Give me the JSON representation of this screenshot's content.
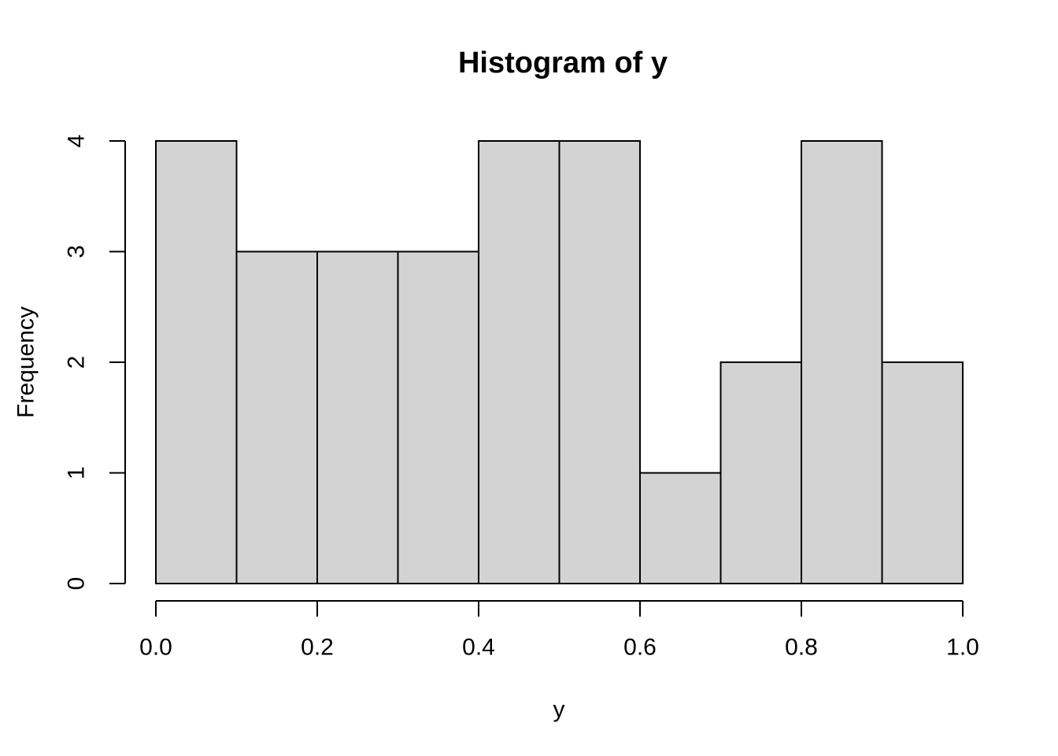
{
  "chart_data": {
    "type": "bar",
    "subtype": "histogram",
    "title": "Histogram of y",
    "xlabel": "y",
    "ylabel": "Frequency",
    "bin_edges": [
      0.0,
      0.1,
      0.2,
      0.3,
      0.4,
      0.5,
      0.6,
      0.7,
      0.8,
      0.9,
      1.0
    ],
    "counts": [
      4,
      3,
      3,
      3,
      4,
      4,
      1,
      2,
      4,
      2
    ],
    "x_tick_labels": [
      "0.0",
      "0.2",
      "0.4",
      "0.6",
      "0.8",
      "1.0"
    ],
    "y_tick_labels": [
      "0",
      "1",
      "2",
      "3",
      "4"
    ],
    "xlim": [
      0.0,
      1.0
    ],
    "ylim": [
      0,
      4
    ],
    "grid": false,
    "legend_position": "none",
    "colors": {
      "bar_fill": "#d3d3d3",
      "bar_stroke": "#000000",
      "axis": "#000000",
      "text": "#000000",
      "background": "#ffffff"
    }
  }
}
